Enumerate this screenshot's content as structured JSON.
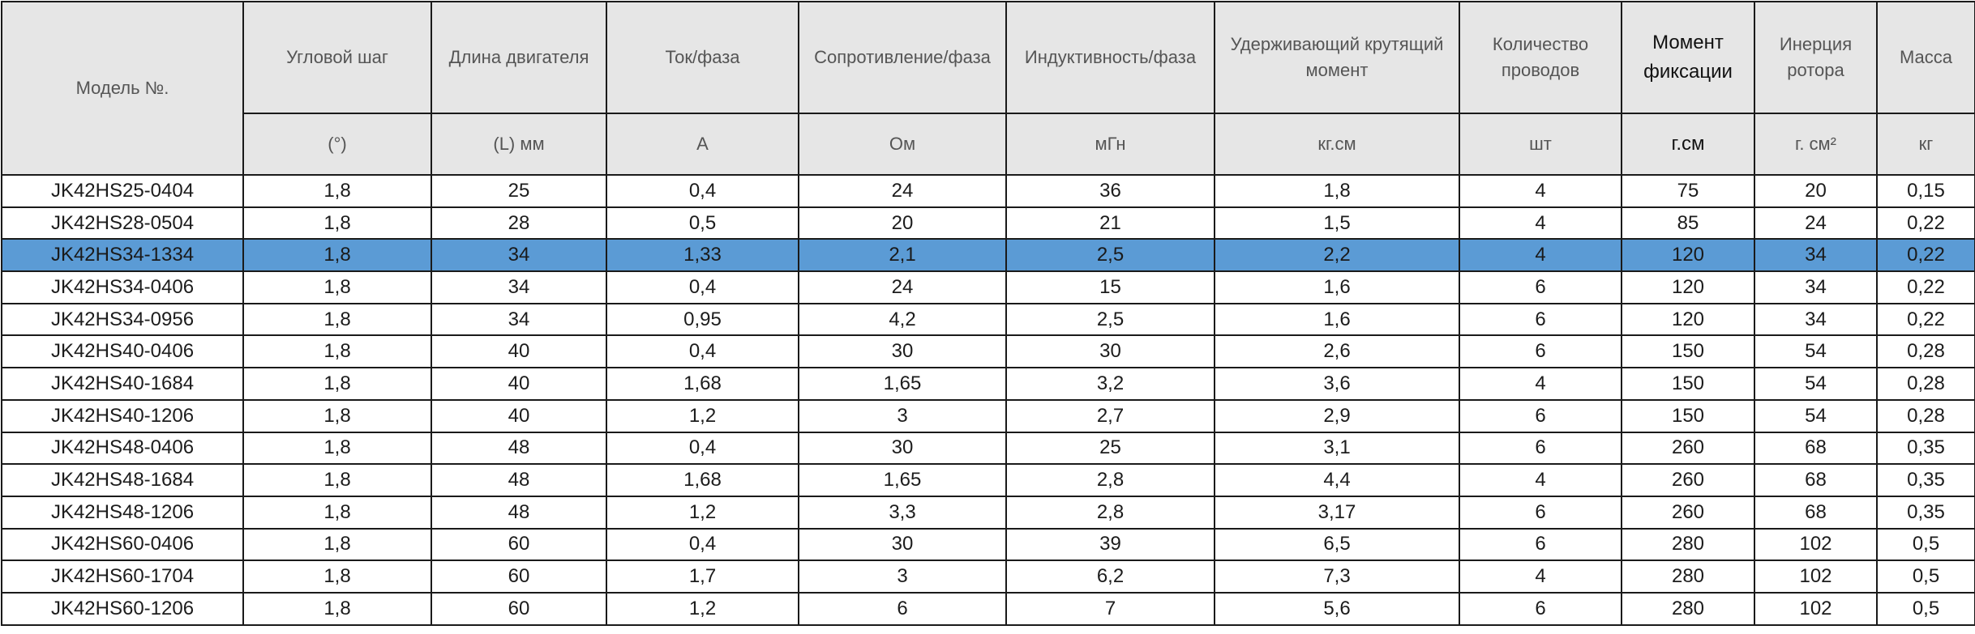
{
  "table": {
    "model_header": "Модель №.",
    "columns": [
      {
        "name": "Угловой шаг",
        "unit": "(°)"
      },
      {
        "name": "Длина двигателя",
        "unit": "(L) мм"
      },
      {
        "name": "Ток/фаза",
        "unit": "A"
      },
      {
        "name": "Сопротивление/фаза",
        "unit": "Ом"
      },
      {
        "name": "Индуктивность/фаза",
        "unit": "мГн"
      },
      {
        "name": "Удерживающий крутящий момент",
        "unit": "кг.см"
      },
      {
        "name": "Количество проводов",
        "unit": "шт"
      },
      {
        "name": "Момент фиксации",
        "unit": "г.см"
      },
      {
        "name": "Инерция ротора",
        "unit": "г. см²"
      },
      {
        "name": "Масса",
        "unit": "кг"
      }
    ],
    "selected_row_index": 2,
    "selected_row_color": "#5b9bd5",
    "header_bg_color": "#e6e6e6",
    "rows": [
      [
        "JK42HS25-0404",
        "1,8",
        "25",
        "0,4",
        "24",
        "36",
        "1,8",
        "4",
        "75",
        "20",
        "0,15"
      ],
      [
        "JK42HS28-0504",
        "1,8",
        "28",
        "0,5",
        "20",
        "21",
        "1,5",
        "4",
        "85",
        "24",
        "0,22"
      ],
      [
        "JK42HS34-1334",
        "1,8",
        "34",
        "1,33",
        "2,1",
        "2,5",
        "2,2",
        "4",
        "120",
        "34",
        "0,22"
      ],
      [
        "JK42HS34-0406",
        "1,8",
        "34",
        "0,4",
        "24",
        "15",
        "1,6",
        "6",
        "120",
        "34",
        "0,22"
      ],
      [
        "JK42HS34-0956",
        "1,8",
        "34",
        "0,95",
        "4,2",
        "2,5",
        "1,6",
        "6",
        "120",
        "34",
        "0,22"
      ],
      [
        "JK42HS40-0406",
        "1,8",
        "40",
        "0,4",
        "30",
        "30",
        "2,6",
        "6",
        "150",
        "54",
        "0,28"
      ],
      [
        "JK42HS40-1684",
        "1,8",
        "40",
        "1,68",
        "1,65",
        "3,2",
        "3,6",
        "4",
        "150",
        "54",
        "0,28"
      ],
      [
        "JK42HS40-1206",
        "1,8",
        "40",
        "1,2",
        "3",
        "2,7",
        "2,9",
        "6",
        "150",
        "54",
        "0,28"
      ],
      [
        "JK42HS48-0406",
        "1,8",
        "48",
        "0,4",
        "30",
        "25",
        "3,1",
        "6",
        "260",
        "68",
        "0,35"
      ],
      [
        "JK42HS48-1684",
        "1,8",
        "48",
        "1,68",
        "1,65",
        "2,8",
        "4,4",
        "4",
        "260",
        "68",
        "0,35"
      ],
      [
        "JK42HS48-1206",
        "1,8",
        "48",
        "1,2",
        "3,3",
        "2,8",
        "3,17",
        "6",
        "260",
        "68",
        "0,35"
      ],
      [
        "JK42HS60-0406",
        "1,8",
        "60",
        "0,4",
        "30",
        "39",
        "6,5",
        "6",
        "280",
        "102",
        "0,5"
      ],
      [
        "JK42HS60-1704",
        "1,8",
        "60",
        "1,7",
        "3",
        "6,2",
        "7,3",
        "4",
        "280",
        "102",
        "0,5"
      ],
      [
        "JK42HS60-1206",
        "1,8",
        "60",
        "1,2",
        "6",
        "7",
        "5,6",
        "6",
        "280",
        "102",
        "0,5"
      ]
    ]
  }
}
